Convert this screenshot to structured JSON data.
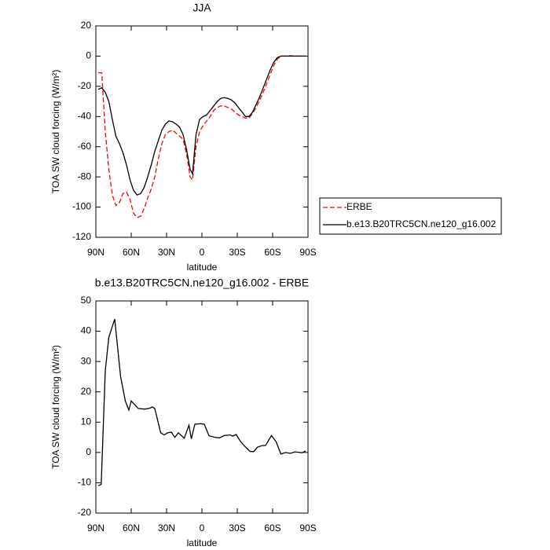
{
  "chart_data": [
    {
      "type": "line",
      "title": "JJA",
      "x_label": "latitude",
      "y_label": "TOA SW cloud forcing (W/m²)",
      "x": [
        88,
        85,
        82,
        79,
        76,
        73,
        70,
        67,
        64,
        61,
        58,
        55,
        52,
        49,
        46,
        43,
        40,
        37,
        34,
        31,
        28,
        25,
        22,
        19,
        16,
        13,
        10,
        8,
        5,
        2,
        -1,
        -4,
        -7,
        -10,
        -13,
        -16,
        -19,
        -22,
        -25,
        -28,
        -31,
        -34,
        -37,
        -40,
        -43,
        -46,
        -49,
        -52,
        -55,
        -58,
        -61,
        -64,
        -67,
        -70,
        -75,
        -80,
        -85,
        -88
      ],
      "series": [
        {
          "name": "ERBE",
          "color": "#ff0000",
          "dash": "dashed",
          "values": [
            -11,
            -11,
            -50,
            -75,
            -92,
            -99,
            -97,
            -91,
            -90,
            -95,
            -104,
            -107,
            -106,
            -101,
            -94,
            -88,
            -80,
            -68,
            -58,
            -52,
            -50,
            -49,
            -51,
            -53,
            -55,
            -65,
            -80,
            -82,
            -60,
            -50,
            -46,
            -43,
            -40,
            -36,
            -34,
            -33,
            -33,
            -34,
            -35,
            -37,
            -39,
            -40,
            -41,
            -41,
            -38,
            -34,
            -29,
            -24,
            -18,
            -12,
            -6,
            -2,
            0,
            0,
            0.3,
            0,
            0,
            0
          ]
        },
        {
          "name": "b.e13.B20TRC5CN.ne120_g16.002",
          "color": "#000000",
          "dash": "solid",
          "values": [
            -22,
            -21,
            -24,
            -30,
            -42,
            -53,
            -58,
            -64,
            -72,
            -82,
            -89,
            -92,
            -91,
            -87,
            -80,
            -72,
            -63,
            -56,
            -49,
            -45,
            -43,
            -43.5,
            -45,
            -47,
            -52,
            -62,
            -75,
            -78,
            -52,
            -42,
            -40,
            -39,
            -36,
            -33,
            -30,
            -28,
            -27.5,
            -28,
            -29,
            -31,
            -34,
            -37,
            -40,
            -40,
            -37,
            -32,
            -27,
            -21,
            -15,
            -9,
            -4,
            -1,
            0,
            0,
            0,
            0,
            0,
            0
          ]
        }
      ],
      "xlim": [
        90,
        -90
      ],
      "xticks": [
        {
          "value": 90,
          "label": "90N"
        },
        {
          "value": 60,
          "label": "60N"
        },
        {
          "value": 30,
          "label": "30N"
        },
        0,
        {
          "value": -30,
          "label": "30S"
        },
        {
          "value": -60,
          "label": "60S"
        },
        {
          "value": -90,
          "label": "90S"
        }
      ],
      "ylim": [
        -120,
        20
      ],
      "yticks": [
        -120,
        -100,
        -80,
        -60,
        -40,
        -20,
        0,
        20
      ],
      "legend": "right"
    },
    {
      "type": "line",
      "title": "b.e13.B20TRC5CN.ne120_g16.002 - ERBE",
      "x_label": "latitude",
      "y_label": "TOA SW cloud forcing (W/m²)",
      "x": [
        88,
        85.5,
        82,
        79,
        74,
        69,
        65,
        62,
        60,
        54,
        49,
        45,
        42,
        40,
        35,
        32,
        29,
        26,
        23,
        20,
        15,
        11,
        9,
        6,
        1,
        -2,
        -6,
        -11,
        -15,
        -19,
        -24,
        -26,
        -29,
        -33,
        -37,
        -41,
        -44,
        -47,
        -51,
        -54,
        -59,
        -63,
        -67,
        -71,
        -75,
        -79,
        -85,
        -88
      ],
      "series": [
        {
          "color": "#000000",
          "dash": "solid",
          "values": [
            -11,
            -10.5,
            27,
            38,
            44,
            25,
            17,
            14,
            17,
            14.5,
            14.3,
            14.5,
            15,
            14.5,
            6.5,
            5.8,
            6.5,
            6.7,
            5,
            6.5,
            4.7,
            9,
            4.5,
            9.3,
            9.5,
            9.3,
            5.5,
            5,
            4.8,
            5.6,
            5.8,
            5.4,
            5.9,
            3.5,
            1.8,
            0.3,
            0.3,
            1.7,
            2.3,
            2.3,
            5.6,
            3.5,
            -0.5,
            0,
            -0.3,
            0.2,
            -0.1,
            0.5
          ]
        }
      ],
      "xlim": [
        90,
        -90
      ],
      "xticks": [
        {
          "value": 90,
          "label": "90N"
        },
        {
          "value": 60,
          "label": "60N"
        },
        {
          "value": 30,
          "label": "30N"
        },
        0,
        {
          "value": -30,
          "label": "30S"
        },
        {
          "value": -60,
          "label": "60S"
        },
        {
          "value": -90,
          "label": "90S"
        }
      ],
      "ylim": [
        -20,
        50
      ],
      "yticks": [
        -20,
        -10,
        0,
        10,
        20,
        30,
        40,
        50
      ]
    }
  ]
}
